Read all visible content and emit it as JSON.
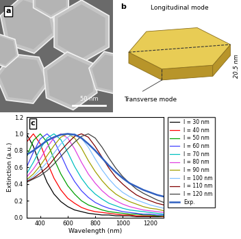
{
  "panels": {
    "a": {
      "label": "a",
      "scale_bar": "50 nm"
    },
    "b": {
      "label": "b",
      "longitudinal": "Longitudinal mode",
      "transverse": "Transverse mode",
      "thickness": "20.5 nm"
    }
  },
  "chart_data": {
    "type": "line",
    "panel_label": "c",
    "x_label": "Wavelength (nm)",
    "y_label": "Extinction (a.u.)",
    "x": [
      300,
      350,
      400,
      450,
      500,
      550,
      600,
      650,
      700,
      750,
      800,
      850,
      900,
      950,
      1000,
      1050,
      1100,
      1150,
      1200,
      1250,
      1300
    ],
    "xlim": [
      300,
      1300
    ],
    "xticks": [
      400,
      600,
      800,
      1000,
      1200
    ],
    "ylim": [
      0,
      1.2
    ],
    "yticks": [
      {
        "value": 0,
        "label": "0.0"
      },
      {
        "value": 0.2,
        "label": "0.2"
      },
      {
        "value": 0.4,
        "label": "0.4"
      },
      {
        "value": 0.6,
        "label": "0.6"
      },
      {
        "value": 0.8,
        "label": "0.8"
      },
      {
        "value": 1.0,
        "label": "1.0"
      },
      {
        "value": 1.2,
        "label": "1.2"
      }
    ],
    "legend": "upper left",
    "series": [
      {
        "name": "l = 30 nm",
        "color": "#000000",
        "values": [
          1.0,
          0.85,
          0.62,
          0.42,
          0.28,
          0.19,
          0.13,
          0.09,
          0.07,
          0.05,
          0.04,
          0.03,
          0.03,
          0.02,
          0.02,
          0.02,
          0.01,
          0.01,
          0.01,
          0.01,
          0.01
        ]
      },
      {
        "name": "l = 40 nm",
        "color": "#ff0000",
        "values": [
          0.9,
          1.0,
          0.88,
          0.66,
          0.47,
          0.33,
          0.23,
          0.17,
          0.12,
          0.09,
          0.07,
          0.06,
          0.05,
          0.04,
          0.03,
          0.03,
          0.02,
          0.02,
          0.02,
          0.02,
          0.01
        ]
      },
      {
        "name": "l = 50 nm",
        "color": "#00a000",
        "values": [
          0.72,
          0.92,
          1.0,
          0.9,
          0.7,
          0.52,
          0.38,
          0.28,
          0.2,
          0.15,
          0.12,
          0.09,
          0.07,
          0.06,
          0.05,
          0.04,
          0.04,
          0.03,
          0.03,
          0.02,
          0.02
        ]
      },
      {
        "name": "l = 60 nm",
        "color": "#4040ff",
        "values": [
          0.6,
          0.78,
          0.94,
          1.0,
          0.92,
          0.75,
          0.57,
          0.43,
          0.32,
          0.24,
          0.18,
          0.14,
          0.11,
          0.09,
          0.07,
          0.06,
          0.05,
          0.04,
          0.04,
          0.03,
          0.03
        ]
      },
      {
        "name": "l = 70 nm",
        "color": "#00c0c0",
        "values": [
          0.52,
          0.66,
          0.82,
          0.95,
          1.0,
          0.93,
          0.78,
          0.61,
          0.47,
          0.36,
          0.28,
          0.22,
          0.17,
          0.14,
          0.11,
          0.09,
          0.08,
          0.07,
          0.06,
          0.05,
          0.04
        ]
      },
      {
        "name": "l = 80 nm",
        "color": "#e040e0",
        "values": [
          0.48,
          0.58,
          0.7,
          0.84,
          0.95,
          1.0,
          0.95,
          0.82,
          0.66,
          0.52,
          0.41,
          0.32,
          0.25,
          0.2,
          0.16,
          0.13,
          0.11,
          0.09,
          0.08,
          0.07,
          0.06
        ]
      },
      {
        "name": "l = 90 nm",
        "color": "#a0a000",
        "values": [
          0.45,
          0.52,
          0.62,
          0.74,
          0.86,
          0.96,
          1.0,
          0.95,
          0.83,
          0.68,
          0.55,
          0.44,
          0.35,
          0.28,
          0.23,
          0.19,
          0.16,
          0.13,
          0.11,
          0.1,
          0.08
        ]
      },
      {
        "name": "l = 100 nm",
        "color": "#80c0ff",
        "values": [
          0.44,
          0.49,
          0.57,
          0.66,
          0.77,
          0.88,
          0.96,
          1.0,
          0.95,
          0.84,
          0.7,
          0.57,
          0.46,
          0.37,
          0.3,
          0.25,
          0.21,
          0.18,
          0.15,
          0.13,
          0.11
        ]
      },
      {
        "name": "l = 110 nm",
        "color": "#800000",
        "values": [
          0.43,
          0.47,
          0.53,
          0.6,
          0.7,
          0.8,
          0.89,
          0.97,
          1.0,
          0.96,
          0.85,
          0.72,
          0.59,
          0.48,
          0.4,
          0.33,
          0.27,
          0.23,
          0.2,
          0.17,
          0.15
        ]
      },
      {
        "name": "l = 120 nm",
        "color": "#404040",
        "values": [
          0.42,
          0.46,
          0.5,
          0.56,
          0.64,
          0.73,
          0.82,
          0.9,
          0.97,
          1.0,
          0.95,
          0.84,
          0.71,
          0.59,
          0.49,
          0.41,
          0.34,
          0.29,
          0.25,
          0.21,
          0.18
        ]
      },
      {
        "name": "Exp.",
        "color": "#3060c0",
        "values": [
          0.75,
          0.8,
          0.86,
          0.92,
          0.96,
          0.99,
          1.0,
          0.99,
          0.95,
          0.88,
          0.8,
          0.71,
          0.62,
          0.54,
          0.47,
          0.41,
          0.37,
          0.33,
          0.3,
          0.27,
          0.25
        ]
      }
    ]
  }
}
